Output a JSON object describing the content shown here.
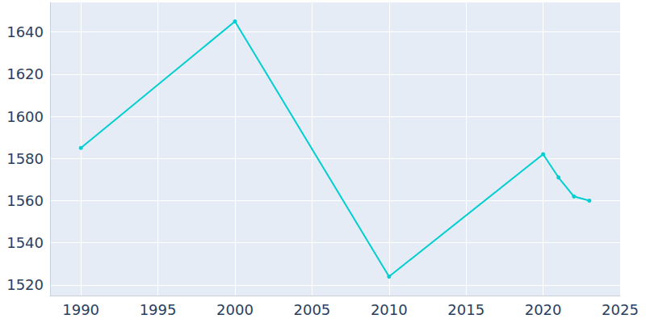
{
  "chart_data": {
    "type": "line",
    "x": [
      1990,
      2000,
      2010,
      2020,
      2021,
      2022,
      2023
    ],
    "values": [
      1585,
      1645,
      1524,
      1582,
      1571,
      1562,
      1560
    ],
    "color": "#00ced1",
    "marker": "circle",
    "xlim": [
      1988,
      2025
    ],
    "xticks": [
      1990,
      1995,
      2000,
      2005,
      2010,
      2015,
      2020,
      2025
    ],
    "ylim": [
      1515,
      1654
    ],
    "yticks": [
      1520,
      1540,
      1560,
      1580,
      1600,
      1620,
      1640
    ],
    "grid": true
  }
}
